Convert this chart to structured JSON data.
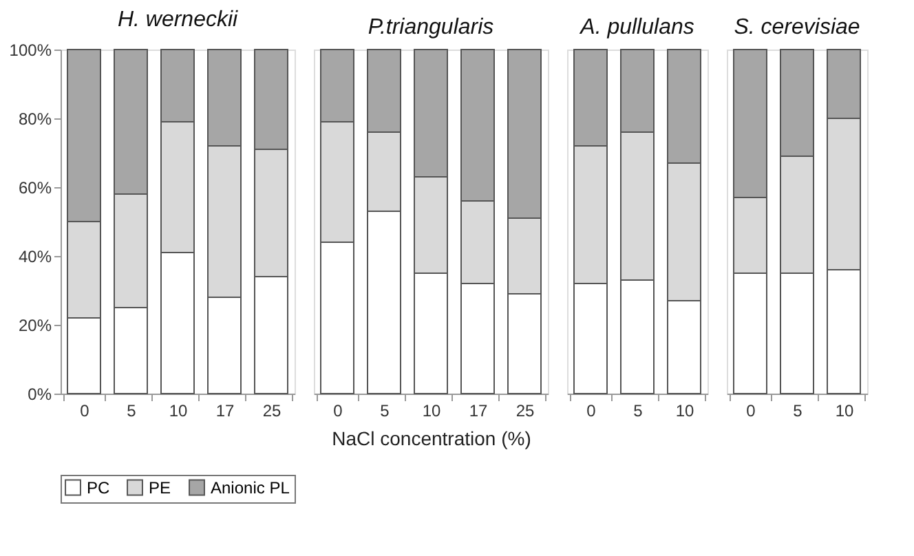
{
  "chart_data": [
    {
      "type": "bar",
      "stacked": true,
      "title": "H. werneckii",
      "categories": [
        "0",
        "5",
        "10",
        "17",
        "25"
      ],
      "ylim": [
        0,
        100
      ],
      "yticks": [
        {
          "value": 0,
          "label": "0%"
        },
        {
          "value": 20,
          "label": "20%"
        },
        {
          "value": 40,
          "label": "40%"
        },
        {
          "value": 60,
          "label": "60%"
        },
        {
          "value": 80,
          "label": "80%"
        },
        {
          "value": 100,
          "label": "100%"
        }
      ],
      "legend": "bottom",
      "grid": false,
      "series": [
        {
          "name": "PC",
          "color": "#ffffff",
          "values": [
            22,
            25,
            41,
            28,
            34
          ]
        },
        {
          "name": "PE",
          "color": "#d9d9d9",
          "values": [
            28,
            33,
            38,
            44,
            37
          ]
        },
        {
          "name": "Anionic PL",
          "color": "#a6a6a6",
          "values": [
            50,
            42,
            21,
            28,
            29
          ]
        }
      ]
    },
    {
      "type": "bar",
      "stacked": true,
      "title": "P.triangularis",
      "xlabel": "NaCl concentration (%)",
      "categories": [
        "0",
        "5",
        "10",
        "17",
        "25"
      ],
      "ylim": [
        0,
        100
      ],
      "tick_labels": "x",
      "grid": false,
      "series": [
        {
          "name": "PC",
          "color": "#ffffff",
          "values": [
            44,
            53,
            35,
            32,
            29
          ]
        },
        {
          "name": "PE",
          "color": "#d9d9d9",
          "values": [
            35,
            23,
            28,
            24,
            22
          ]
        },
        {
          "name": "Anionic PL",
          "color": "#a6a6a6",
          "values": [
            21,
            24,
            37,
            44,
            49
          ]
        }
      ]
    },
    {
      "type": "bar",
      "stacked": true,
      "title": "A. pullulans",
      "categories": [
        "0",
        "5",
        "10"
      ],
      "ylim": [
        0,
        100
      ],
      "tick_labels": "x",
      "grid": false,
      "series": [
        {
          "name": "PC",
          "color": "#ffffff",
          "values": [
            32,
            33,
            27
          ]
        },
        {
          "name": "PE",
          "color": "#d9d9d9",
          "values": [
            40,
            43,
            40
          ]
        },
        {
          "name": "Anionic PL",
          "color": "#a6a6a6",
          "values": [
            28,
            24,
            33
          ]
        }
      ]
    },
    {
      "type": "bar",
      "stacked": true,
      "title": "S. cerevisiae",
      "categories": [
        "0",
        "5",
        "10"
      ],
      "ylim": [
        0,
        100
      ],
      "tick_labels": "x",
      "grid": false,
      "series": [
        {
          "name": "PC",
          "color": "#ffffff",
          "values": [
            35,
            35,
            36
          ]
        },
        {
          "name": "PE",
          "color": "#d9d9d9",
          "values": [
            22,
            34,
            44
          ]
        },
        {
          "name": "Anionic PL",
          "color": "#a6a6a6",
          "values": [
            43,
            31,
            20
          ]
        }
      ]
    }
  ]
}
